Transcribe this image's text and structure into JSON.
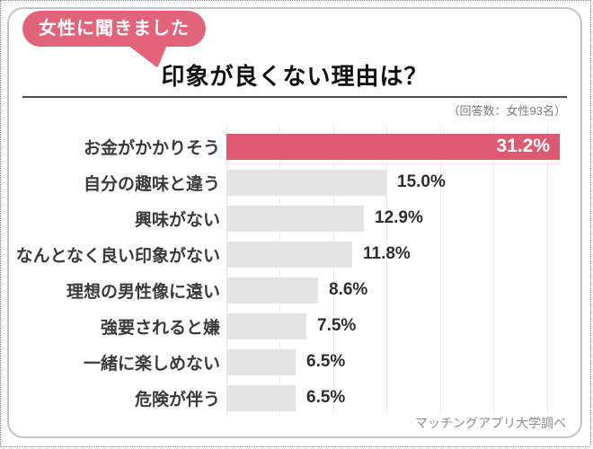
{
  "badge": {
    "label": "女性に聞きました"
  },
  "title": "印象が良くない理由は？",
  "subtitle": "（回答数：女性93名）",
  "credit": "マッチングアプリ大学調べ",
  "colors": {
    "accent_bar": "#db5a71",
    "badge_pink": "#e2647a",
    "bar_gray": "#e3e3e3",
    "gridline": "#eaeaea",
    "rule": "#4d4d4d"
  },
  "chart_data": {
    "type": "bar",
    "orientation": "horizontal",
    "title": "印象が良くない理由は？",
    "categories": [
      "お金がかかりそう",
      "自分の趣味と違う",
      "興味がない",
      "なんとなく良い印象がない",
      "理想の男性像に遠い",
      "強要されると嫌",
      "一緒に楽しめない",
      "危険が伴う"
    ],
    "values": [
      31.2,
      15.0,
      12.9,
      11.8,
      8.6,
      7.5,
      6.5,
      6.5
    ],
    "value_labels": [
      "31.2%",
      "15.0%",
      "12.9%",
      "11.8%",
      "8.6%",
      "7.5%",
      "6.5%",
      "6.5%"
    ],
    "unit": "%",
    "highlight_index": 0,
    "xlim": [
      0,
      33.5
    ],
    "gridline_step": 5,
    "gridline_count": 7,
    "legend": null,
    "grid": true
  }
}
